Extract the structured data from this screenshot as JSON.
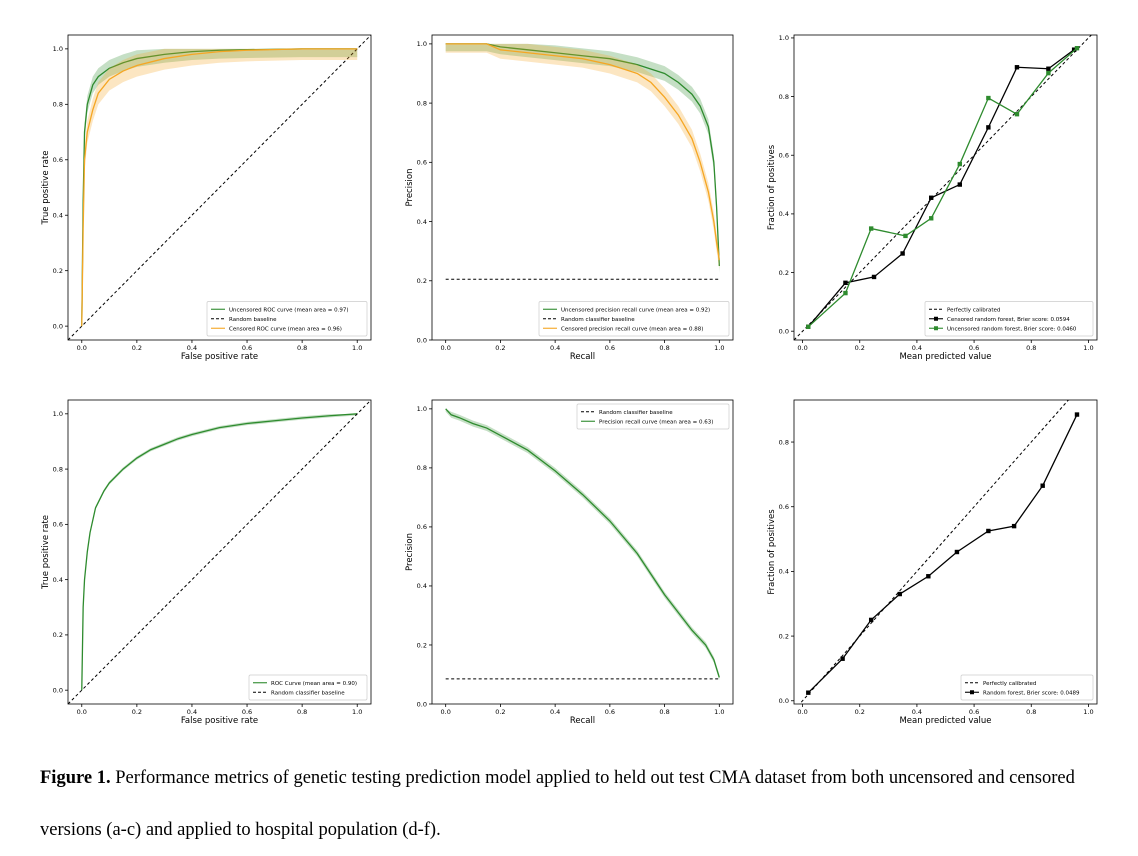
{
  "colors": {
    "green": "#2e8b2e",
    "orange": "#f5a623",
    "black": "#000000",
    "axis": "#000000"
  },
  "caption": {
    "label": "Figure 1.",
    "text": "Performance metrics of genetic testing prediction model applied to held out test CMA dataset from both uncensored and censored versions (a-c) and applied to hospital population (d-f)."
  },
  "chart_data": [
    {
      "id": "a",
      "type": "line",
      "title": "",
      "xlabel": "False positive rate",
      "ylabel": "True positive rate",
      "xlim": [
        -0.05,
        1.05
      ],
      "ylim": [
        -0.05,
        1.05
      ],
      "xticks": [
        "0.0",
        "0.2",
        "0.4",
        "0.6",
        "0.8",
        "1.0"
      ],
      "yticks": [
        "0.0",
        "0.2",
        "0.4",
        "0.6",
        "0.8",
        "1.0"
      ],
      "legend_position": "bottom-right",
      "series": [
        {
          "name": "Uncensored ROC curve (mean area = 0.97)",
          "color": "green",
          "style": "solid",
          "band": 0.03,
          "x": [
            0,
            0.005,
            0.01,
            0.02,
            0.04,
            0.06,
            0.1,
            0.15,
            0.2,
            0.3,
            0.4,
            0.5,
            0.6,
            0.8,
            1.0
          ],
          "y": [
            0,
            0.45,
            0.7,
            0.8,
            0.87,
            0.9,
            0.93,
            0.95,
            0.965,
            0.98,
            0.99,
            0.995,
            0.997,
            1.0,
            1.0
          ]
        },
        {
          "name": "Random baseline",
          "color": "black",
          "style": "dashed",
          "x": [
            -0.05,
            1.05
          ],
          "y": [
            -0.05,
            1.05
          ]
        },
        {
          "name": "Censored ROC curve (mean area = 0.96)",
          "color": "orange",
          "style": "solid",
          "band": 0.04,
          "x": [
            0,
            0.005,
            0.01,
            0.02,
            0.04,
            0.06,
            0.1,
            0.15,
            0.2,
            0.3,
            0.4,
            0.5,
            0.6,
            0.8,
            1.0
          ],
          "y": [
            0,
            0.35,
            0.6,
            0.7,
            0.78,
            0.84,
            0.89,
            0.92,
            0.94,
            0.965,
            0.98,
            0.99,
            0.995,
            1.0,
            1.0
          ]
        }
      ]
    },
    {
      "id": "b",
      "type": "line",
      "title": "",
      "xlabel": "Recall",
      "ylabel": "Precision",
      "xlim": [
        -0.05,
        1.05
      ],
      "ylim": [
        0.0,
        1.03
      ],
      "xticks": [
        "0.0",
        "0.2",
        "0.4",
        "0.6",
        "0.8",
        "1.0"
      ],
      "yticks": [
        "0.0",
        "0.2",
        "0.4",
        "0.6",
        "0.8",
        "1.0"
      ],
      "legend_position": "bottom-right",
      "series": [
        {
          "name": "Uncensored precision recall curve (mean area = 0.92)",
          "color": "green",
          "style": "solid",
          "band": 0.025,
          "x": [
            0,
            0.1,
            0.15,
            0.2,
            0.3,
            0.4,
            0.5,
            0.6,
            0.7,
            0.8,
            0.85,
            0.9,
            0.93,
            0.96,
            0.98,
            0.99,
            1.0
          ],
          "y": [
            1.0,
            1.0,
            1.0,
            0.99,
            0.98,
            0.97,
            0.96,
            0.95,
            0.93,
            0.9,
            0.87,
            0.83,
            0.79,
            0.72,
            0.6,
            0.45,
            0.25
          ]
        },
        {
          "name": "Random classifier baseline",
          "color": "black",
          "style": "dashed",
          "x": [
            0,
            1.0
          ],
          "y": [
            0.205,
            0.205
          ]
        },
        {
          "name": "Censored precision recall curve (mean area = 0.88)",
          "color": "orange",
          "style": "solid",
          "band": 0.03,
          "x": [
            0,
            0.1,
            0.15,
            0.2,
            0.3,
            0.4,
            0.5,
            0.6,
            0.7,
            0.75,
            0.8,
            0.85,
            0.9,
            0.93,
            0.96,
            0.98,
            0.99,
            1.0
          ],
          "y": [
            1.0,
            1.0,
            1.0,
            0.98,
            0.97,
            0.96,
            0.95,
            0.93,
            0.9,
            0.87,
            0.82,
            0.76,
            0.68,
            0.6,
            0.5,
            0.4,
            0.33,
            0.27
          ]
        }
      ]
    },
    {
      "id": "c",
      "type": "line",
      "title": "",
      "xlabel": "Mean predicted value",
      "ylabel": "Fraction of positives",
      "xlim": [
        -0.03,
        1.03
      ],
      "ylim": [
        -0.03,
        1.01
      ],
      "xticks": [
        "0.0",
        "0.2",
        "0.4",
        "0.6",
        "0.8",
        "1.0"
      ],
      "yticks": [
        "0.0",
        "0.2",
        "0.4",
        "0.6",
        "0.8",
        "1.0"
      ],
      "legend_position": "bottom-right",
      "series": [
        {
          "name": "Perfectly calibrated",
          "color": "black",
          "style": "dashed",
          "x": [
            -0.03,
            1.03
          ],
          "y": [
            -0.03,
            1.03
          ]
        },
        {
          "name": "Censored random forest, Brier score: 0.0594",
          "color": "black",
          "style": "solid",
          "marker": "square",
          "x": [
            0.02,
            0.15,
            0.25,
            0.35,
            0.45,
            0.55,
            0.65,
            0.75,
            0.86,
            0.95
          ],
          "y": [
            0.015,
            0.165,
            0.185,
            0.265,
            0.455,
            0.5,
            0.695,
            0.9,
            0.895,
            0.96
          ]
        },
        {
          "name": "Uncensored random forest, Brier score: 0.0460",
          "color": "green",
          "style": "solid",
          "marker": "square",
          "x": [
            0.02,
            0.15,
            0.24,
            0.36,
            0.45,
            0.55,
            0.65,
            0.75,
            0.86,
            0.96
          ],
          "y": [
            0.015,
            0.13,
            0.35,
            0.325,
            0.385,
            0.57,
            0.795,
            0.74,
            0.88,
            0.965
          ]
        }
      ]
    },
    {
      "id": "d",
      "type": "line",
      "title": "",
      "xlabel": "False positive rate",
      "ylabel": "True positive rate",
      "xlim": [
        -0.05,
        1.05
      ],
      "ylim": [
        -0.05,
        1.05
      ],
      "xticks": [
        "0.0",
        "0.2",
        "0.4",
        "0.6",
        "0.8",
        "1.0"
      ],
      "yticks": [
        "0.0",
        "0.2",
        "0.4",
        "0.6",
        "0.8",
        "1.0"
      ],
      "legend_position": "bottom-right",
      "series": [
        {
          "name": "ROC Curve (mean area = 0.90)",
          "color": "green",
          "style": "solid",
          "band": 0.006,
          "x": [
            0,
            0.005,
            0.01,
            0.02,
            0.03,
            0.05,
            0.08,
            0.1,
            0.15,
            0.2,
            0.25,
            0.3,
            0.35,
            0.4,
            0.5,
            0.6,
            0.7,
            0.8,
            0.9,
            1.0
          ],
          "y": [
            0,
            0.3,
            0.4,
            0.5,
            0.57,
            0.66,
            0.72,
            0.75,
            0.8,
            0.84,
            0.87,
            0.89,
            0.91,
            0.925,
            0.95,
            0.965,
            0.975,
            0.985,
            0.993,
            1.0
          ]
        },
        {
          "name": "Random classifier baseline",
          "color": "black",
          "style": "dashed",
          "x": [
            -0.05,
            1.05
          ],
          "y": [
            -0.05,
            1.05
          ]
        }
      ]
    },
    {
      "id": "e",
      "type": "line",
      "title": "",
      "xlabel": "Recall",
      "ylabel": "Precision",
      "xlim": [
        -0.05,
        1.05
      ],
      "ylim": [
        0.0,
        1.03
      ],
      "xticks": [
        "0.0",
        "0.2",
        "0.4",
        "0.6",
        "0.8",
        "1.0"
      ],
      "yticks": [
        "0.0",
        "0.2",
        "0.4",
        "0.6",
        "0.8",
        "1.0"
      ],
      "legend_position": "top-right",
      "series": [
        {
          "name": "Random classifier baseline",
          "color": "black",
          "style": "dashed",
          "x": [
            0,
            1.0
          ],
          "y": [
            0.085,
            0.085
          ]
        },
        {
          "name": "Precision recall curve (mean area = 0.63)",
          "color": "green",
          "style": "solid",
          "band": 0.01,
          "x": [
            0,
            0.02,
            0.05,
            0.1,
            0.15,
            0.2,
            0.3,
            0.4,
            0.5,
            0.6,
            0.7,
            0.75,
            0.8,
            0.85,
            0.9,
            0.95,
            0.98,
            1.0
          ],
          "y": [
            1.0,
            0.98,
            0.97,
            0.95,
            0.935,
            0.91,
            0.86,
            0.79,
            0.71,
            0.62,
            0.51,
            0.44,
            0.37,
            0.31,
            0.25,
            0.2,
            0.15,
            0.09
          ]
        }
      ]
    },
    {
      "id": "f",
      "type": "line",
      "title": "",
      "xlabel": "Mean predicted value",
      "ylabel": "Fraction of positives",
      "xlim": [
        -0.03,
        1.03
      ],
      "ylim": [
        -0.01,
        0.93
      ],
      "xticks": [
        "0.0",
        "0.2",
        "0.4",
        "0.6",
        "0.8",
        "1.0"
      ],
      "yticks": [
        "0.0",
        "0.2",
        "0.4",
        "0.6",
        "0.8"
      ],
      "legend_position": "bottom-right",
      "series": [
        {
          "name": "Perfectly calibrated",
          "color": "black",
          "style": "dashed",
          "x": [
            -0.03,
            1.03
          ],
          "y": [
            -0.03,
            1.03
          ]
        },
        {
          "name": "Random forest, Brier score: 0.0489",
          "color": "black",
          "style": "solid",
          "marker": "square",
          "x": [
            0.02,
            0.14,
            0.24,
            0.34,
            0.44,
            0.54,
            0.65,
            0.74,
            0.84,
            0.96
          ],
          "y": [
            0.025,
            0.13,
            0.25,
            0.33,
            0.385,
            0.46,
            0.525,
            0.54,
            0.665,
            0.885
          ]
        }
      ]
    }
  ]
}
